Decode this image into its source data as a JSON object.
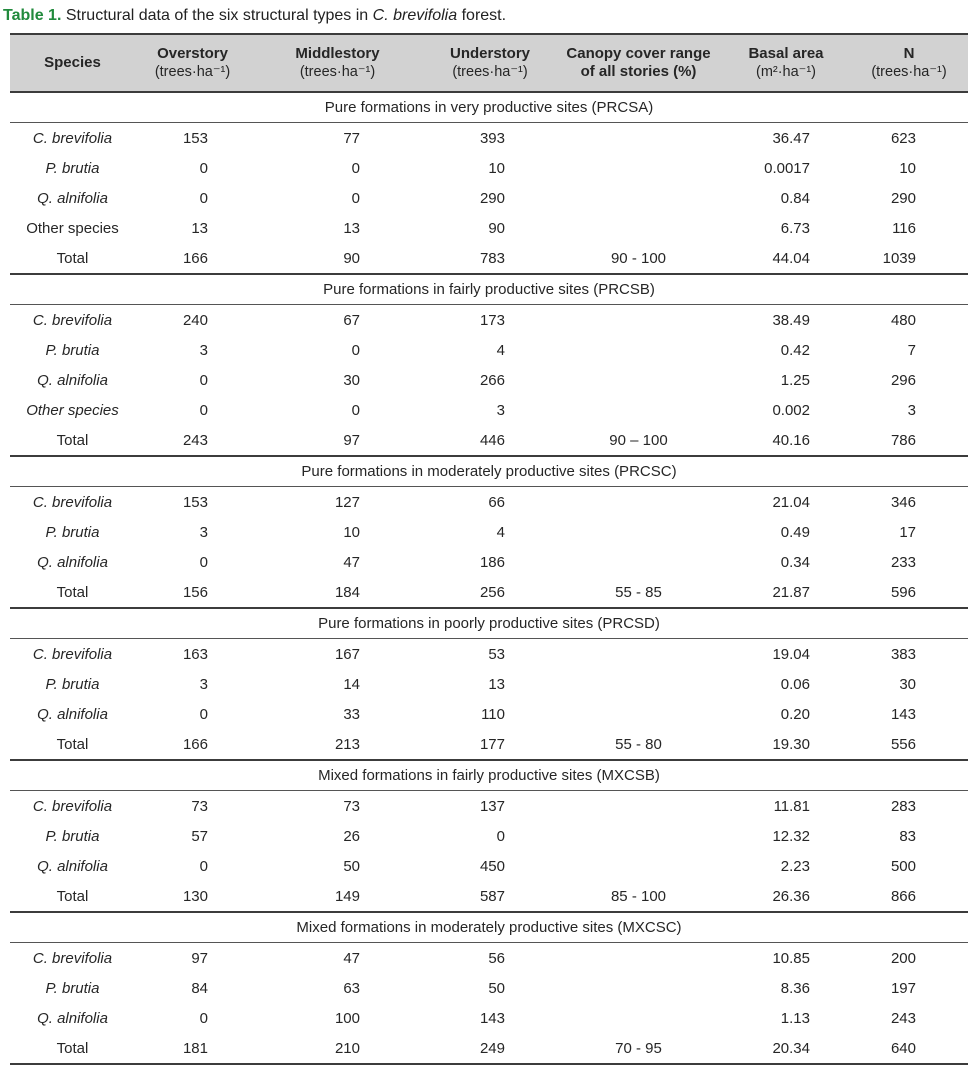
{
  "title": {
    "label": "Table 1.",
    "text_before": "Structural data of the six structural types in",
    "text_italic": "C. brevifolia",
    "text_after": "forest."
  },
  "colors": {
    "accent_green": "#218a3c",
    "header_bg": "#d2d2d2",
    "rule_dark": "#3c3c3c",
    "text": "#262626"
  },
  "columns": [
    {
      "key": "species",
      "line1": "Species",
      "line2": "",
      "line2_bold": false
    },
    {
      "key": "overstory",
      "line1": "Overstory",
      "line2": "(trees·ha⁻¹)",
      "line2_bold": false
    },
    {
      "key": "middlestory",
      "line1": "Middlestory",
      "line2": "(trees·ha⁻¹)",
      "line2_bold": false
    },
    {
      "key": "understory",
      "line1": "Understory",
      "line2": "(trees·ha⁻¹)",
      "line2_bold": false
    },
    {
      "key": "canopy",
      "line1": "Canopy cover range",
      "line2": "of all stories (%)",
      "line2_bold": true
    },
    {
      "key": "basal",
      "line1": "Basal area",
      "line2": "(m²·ha⁻¹)",
      "line2_bold": false
    },
    {
      "key": "n",
      "line1": "N",
      "line2": "(trees·ha⁻¹)",
      "line2_bold": false
    }
  ],
  "sections": [
    {
      "header": "Pure formations in very productive sites (PRCSA)",
      "rows": [
        {
          "species": "C. brevifolia",
          "italic": true,
          "values": [
            "153",
            "77",
            "393",
            "",
            "36.47",
            "623"
          ]
        },
        {
          "species": "P. brutia",
          "italic": true,
          "values": [
            "0",
            "0",
            "10",
            "",
            "0.0017",
            "10"
          ]
        },
        {
          "species": "Q. alnifolia",
          "italic": true,
          "values": [
            "0",
            "0",
            "290",
            "",
            "0.84",
            "290"
          ]
        },
        {
          "species": "Other species",
          "italic": false,
          "values": [
            "13",
            "13",
            "90",
            "",
            "6.73",
            "116"
          ]
        },
        {
          "species": "Total",
          "italic": false,
          "values": [
            "166",
            "90",
            "783",
            "90 - 100",
            "44.04",
            "1039"
          ]
        }
      ]
    },
    {
      "header": "Pure formations in fairly productive sites (PRCSB)",
      "rows": [
        {
          "species": "C. brevifolia",
          "italic": true,
          "values": [
            "240",
            "67",
            "173",
            "",
            "38.49",
            "480"
          ]
        },
        {
          "species": "P. brutia",
          "italic": true,
          "values": [
            "3",
            "0",
            "4",
            "",
            "0.42",
            "7"
          ]
        },
        {
          "species": "Q. alnifolia",
          "italic": true,
          "values": [
            "0",
            "30",
            "266",
            "",
            "1.25",
            "296"
          ]
        },
        {
          "species": "Other species",
          "italic": true,
          "values": [
            "0",
            "0",
            "3",
            "",
            "0.002",
            "3"
          ]
        },
        {
          "species": "Total",
          "italic": false,
          "values": [
            "243",
            "97",
            "446",
            "90 – 100",
            "40.16",
            "786"
          ]
        }
      ]
    },
    {
      "header": "Pure formations in moderately productive sites (PRCSC)",
      "rows": [
        {
          "species": "C. brevifolia",
          "italic": true,
          "values": [
            "153",
            "127",
            "66",
            "",
            "21.04",
            "346"
          ]
        },
        {
          "species": "P. brutia",
          "italic": true,
          "values": [
            "3",
            "10",
            "4",
            "",
            "0.49",
            "17"
          ]
        },
        {
          "species": "Q. alnifolia",
          "italic": true,
          "values": [
            "0",
            "47",
            "186",
            "",
            "0.34",
            "233"
          ]
        },
        {
          "species": "Total",
          "italic": false,
          "values": [
            "156",
            "184",
            "256",
            "55 - 85",
            "21.87",
            "596"
          ]
        }
      ]
    },
    {
      "header": "Pure formations in poorly productive sites (PRCSD)",
      "rows": [
        {
          "species": "C. brevifolia",
          "italic": true,
          "values": [
            "163",
            "167",
            "53",
            "",
            "19.04",
            "383"
          ]
        },
        {
          "species": "P. brutia",
          "italic": true,
          "values": [
            "3",
            "14",
            "13",
            "",
            "0.06",
            "30"
          ]
        },
        {
          "species": "Q. alnifolia",
          "italic": true,
          "values": [
            "0",
            "33",
            "110",
            "",
            "0.20",
            "143"
          ]
        },
        {
          "species": "Total",
          "italic": false,
          "values": [
            "166",
            "213",
            "177",
            "55 - 80",
            "19.30",
            "556"
          ]
        }
      ]
    },
    {
      "header": "Mixed formations in fairly productive sites (MXCSB)",
      "rows": [
        {
          "species": "C. brevifolia",
          "italic": true,
          "values": [
            "73",
            "73",
            "137",
            "",
            "11.81",
            "283"
          ]
        },
        {
          "species": "P. brutia",
          "italic": true,
          "values": [
            "57",
            "26",
            "0",
            "",
            "12.32",
            "83"
          ]
        },
        {
          "species": "Q. alnifolia",
          "italic": true,
          "values": [
            "0",
            "50",
            "450",
            "",
            "2.23",
            "500"
          ]
        },
        {
          "species": "Total",
          "italic": false,
          "values": [
            "130",
            "149",
            "587",
            "85 - 100",
            "26.36",
            "866"
          ]
        }
      ]
    },
    {
      "header": "Mixed formations in moderately productive sites (MXCSC)",
      "rows": [
        {
          "species": "C. brevifolia",
          "italic": true,
          "values": [
            "97",
            "47",
            "56",
            "",
            "10.85",
            "200"
          ]
        },
        {
          "species": "P. brutia",
          "italic": true,
          "values": [
            "84",
            "63",
            "50",
            "",
            "8.36",
            "197"
          ]
        },
        {
          "species": "Q. alnifolia",
          "italic": true,
          "values": [
            "0",
            "100",
            "143",
            "",
            "1.13",
            "243"
          ]
        },
        {
          "species": "Total",
          "italic": false,
          "values": [
            "181",
            "210",
            "249",
            "70 - 95",
            "20.34",
            "640"
          ]
        }
      ]
    }
  ]
}
